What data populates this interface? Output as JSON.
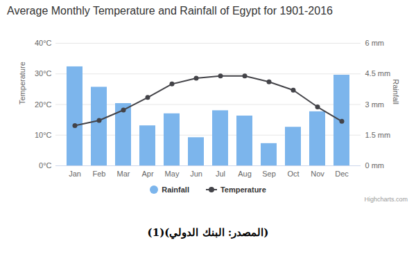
{
  "chart_data": {
    "type": "bar",
    "title": "Average Monthly Temperature and Rainfall of Egypt for 1901-2016",
    "categories": [
      "Jan",
      "Feb",
      "Mar",
      "Apr",
      "May",
      "Jun",
      "Jul",
      "Aug",
      "Sep",
      "Oct",
      "Nov",
      "Dec"
    ],
    "series": [
      {
        "name": "Rainfall",
        "type": "bar",
        "color": "#7cb5ec",
        "axis": "y2",
        "values": [
          4.85,
          3.85,
          3.05,
          1.96,
          2.55,
          1.38,
          2.7,
          2.44,
          1.09,
          1.89,
          2.65,
          4.44
        ]
      },
      {
        "name": "Temperature",
        "type": "line",
        "color": "#434348",
        "marker": "circle",
        "values": [
          13.1,
          14.8,
          18.2,
          22.3,
          26.7,
          28.6,
          29.3,
          29.3,
          27.4,
          24.7,
          19.2,
          14.5
        ]
      }
    ],
    "y_label": "Temperature",
    "y2_label": "Rainfall",
    "ylim": [
      0,
      40
    ],
    "yticks": [
      {
        "value": 0,
        "label": "0°C"
      },
      {
        "value": 10,
        "label": "10°C"
      },
      {
        "value": 20,
        "label": "20°C"
      },
      {
        "value": 30,
        "label": "30°C"
      },
      {
        "value": 40,
        "label": "40°C"
      }
    ],
    "y2lim": [
      0,
      6
    ],
    "y2ticks": [
      {
        "value": 0,
        "label": "0 mm"
      },
      {
        "value": 1.5,
        "label": "1.5 mm"
      },
      {
        "value": 3,
        "label": "3 mm"
      },
      {
        "value": 4.5,
        "label": "4.5 mm"
      },
      {
        "value": 6,
        "label": "6 mm"
      }
    ],
    "grid": true,
    "legend": "bottom",
    "credits": "Highcharts.com",
    "source": "(المصدر: البنك الدولي)(1)"
  }
}
